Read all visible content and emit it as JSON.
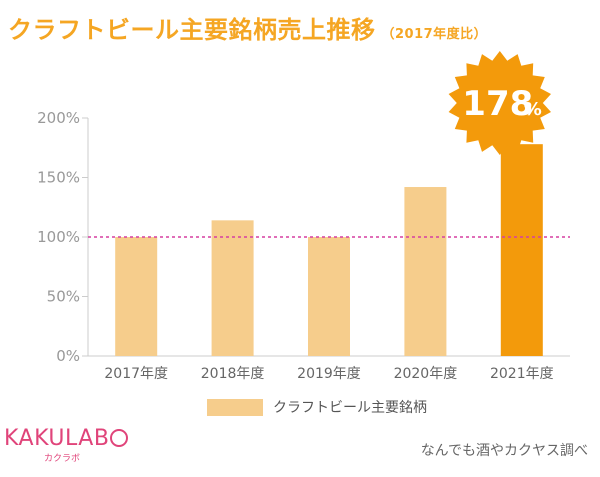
{
  "title": {
    "main": "クラフトビール主要銘柄売上推移",
    "sub": "（2017年度比）"
  },
  "badge": {
    "value": "178",
    "unit": "%"
  },
  "legend": {
    "label": "クラフトビール主要銘柄"
  },
  "logo": {
    "text": "KAKULAB",
    "kana": "カクラボ"
  },
  "credit": "なんでも酒やカクヤス調べ",
  "colors": {
    "title": "#f5a623",
    "bar": "#f6cd8c",
    "highlight_bar": "#f39a0b",
    "reference_line": "#d63fa1",
    "axis": "#cccccc",
    "badge": "#f39a0b",
    "logo": "#e0447a"
  },
  "chart_data": {
    "type": "bar",
    "title": "クラフトビール主要銘柄売上推移（2017年度比）",
    "categories": [
      "2017年度",
      "2018年度",
      "2019年度",
      "2020年度",
      "2021年度"
    ],
    "series": [
      {
        "name": "クラフトビール主要銘柄",
        "values": [
          100,
          114,
          100,
          142,
          178
        ]
      }
    ],
    "highlight_index": 4,
    "reference_line": 100,
    "ylim": [
      0,
      200
    ],
    "yticks": [
      0,
      50,
      100,
      150,
      200
    ],
    "ytick_labels": [
      "0%",
      "50%",
      "100%",
      "150%",
      "200%"
    ],
    "xlabel": "",
    "ylabel": "",
    "grid": false,
    "legend_position": "bottom"
  }
}
